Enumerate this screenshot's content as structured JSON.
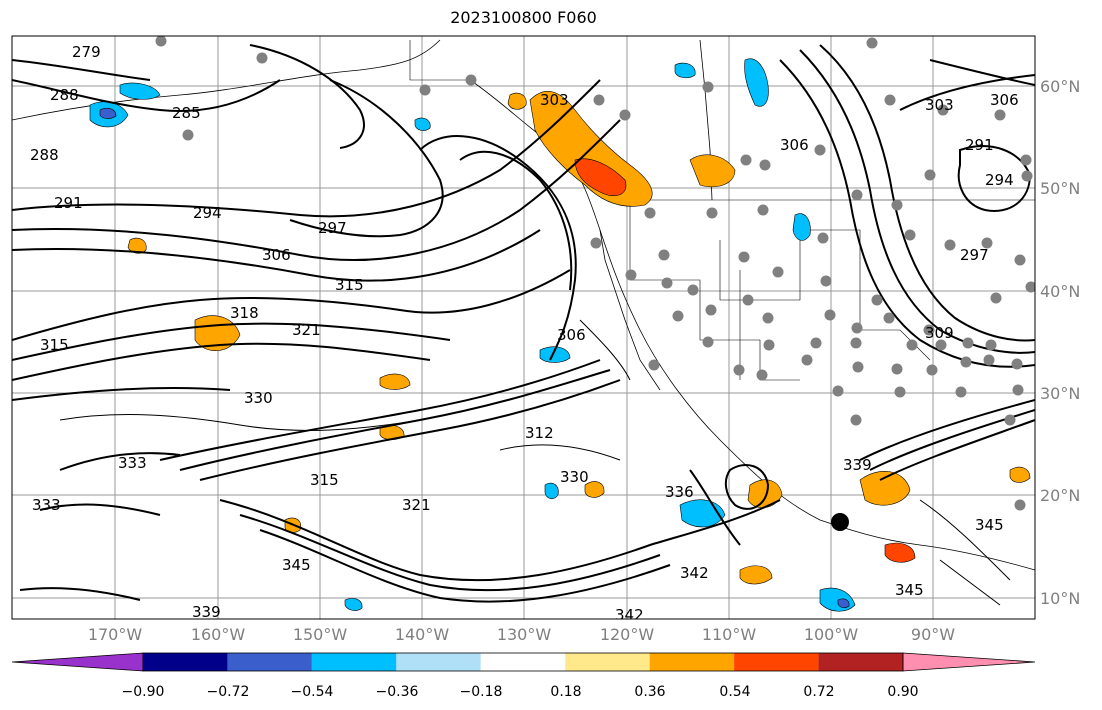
{
  "title": "2023100800 F060",
  "lon_ticks": [
    "170°W",
    "160°W",
    "150°W",
    "140°W",
    "130°W",
    "120°W",
    "110°W",
    "100°W",
    "90°W"
  ],
  "lat_ticks": [
    "60°N",
    "50°N",
    "40°N",
    "30°N",
    "20°N",
    "10°N"
  ],
  "colorbar": {
    "ticks": [
      "−0.90",
      "−0.72",
      "−0.54",
      "−0.36",
      "−0.18",
      "0.18",
      "0.36",
      "0.54",
      "0.72",
      "0.90"
    ],
    "colors": [
      "#9932cc",
      "#00008b",
      "#3a5fcd",
      "#00bfff",
      "#b0e0f8",
      "#ffffff",
      "#ffe98a",
      "#ffa500",
      "#ff4500",
      "#b22222",
      "#ff8fb0"
    ]
  },
  "contour_labels": [
    "279",
    "288",
    "285",
    "288",
    "291",
    "294",
    "297",
    "306",
    "315",
    "318",
    "321",
    "315",
    "303",
    "312",
    "330",
    "333",
    "333",
    "315",
    "321",
    "330",
    "336",
    "339",
    "342",
    "345",
    "342",
    "339",
    "345",
    "345",
    "306",
    "294",
    "297",
    "291",
    "306",
    "303",
    "306",
    "309"
  ],
  "colors": {
    "positive_fill": "#ffa500",
    "strong_positive_fill": "#ff4500",
    "negative_fill": "#00bfff",
    "strong_negative_fill": "#3a5fcd",
    "station_dots": "#808080"
  }
}
